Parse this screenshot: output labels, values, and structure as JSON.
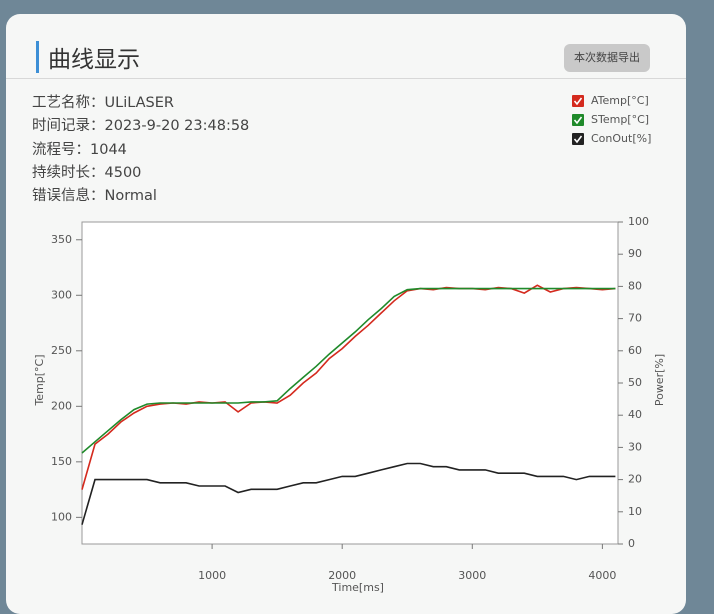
{
  "header": {
    "title": "曲线显示",
    "export_button": "本次数据导出"
  },
  "info": [
    {
      "label": "工艺名称：",
      "value": "ULiLASER"
    },
    {
      "label": "时间记录：",
      "value": "2023-9-20 23:48:58"
    },
    {
      "label": "流程号：",
      "value": "1044"
    },
    {
      "label": "持续时长：",
      "value": "4500"
    },
    {
      "label": "错误信息：",
      "value": "Normal"
    }
  ],
  "chart_data": {
    "type": "line",
    "x_label": "Time[ms]",
    "y_label": "Temp[°C]",
    "y2_label": "Power[%]",
    "x": [
      0,
      100,
      200,
      300,
      400,
      500,
      600,
      700,
      800,
      900,
      1000,
      1100,
      1200,
      1300,
      1400,
      1500,
      1600,
      1700,
      1800,
      1900,
      2000,
      2100,
      2200,
      2300,
      2400,
      2500,
      2600,
      2700,
      2800,
      2900,
      3000,
      3100,
      3200,
      3300,
      3400,
      3500,
      3600,
      3700,
      3800,
      3900,
      4000,
      4100
    ],
    "xlim": [
      0,
      4120
    ],
    "xticks": [
      1000,
      2000,
      3000,
      4000
    ],
    "ylim": [
      76,
      366
    ],
    "yticks": [
      100,
      150,
      200,
      250,
      300,
      350
    ],
    "y2lim": [
      0,
      100
    ],
    "y2ticks": [
      0,
      10,
      20,
      30,
      40,
      50,
      60,
      70,
      80,
      90,
      100
    ],
    "legend": "top-right",
    "grid": false,
    "series": [
      {
        "name": "ATemp[°C]",
        "color": "#d42a1e",
        "values": [
          125,
          166,
          175,
          186,
          194,
          200,
          202,
          203,
          202,
          204,
          203,
          204,
          195,
          203,
          204,
          203,
          210,
          221,
          230,
          243,
          252,
          263,
          273,
          284,
          295,
          304,
          306,
          305,
          307,
          306,
          306,
          305,
          307,
          306,
          302,
          309,
          303,
          306,
          307,
          306,
          305,
          306
        ]
      },
      {
        "name": "STemp[°C]",
        "color": "#1f8a2a",
        "values": [
          158,
          168,
          178,
          188,
          197,
          202,
          203,
          203,
          203,
          203,
          203,
          203,
          203,
          204,
          204,
          205,
          216,
          226,
          236,
          247,
          257,
          267,
          278,
          288,
          299,
          305,
          306,
          306,
          306,
          306,
          306,
          306,
          306,
          306,
          306,
          306,
          306,
          306,
          306,
          306,
          306,
          306
        ]
      },
      {
        "name": "ConOut[%]",
        "color": "#222222",
        "axis": "y2",
        "values": [
          6,
          20,
          20,
          20,
          20,
          20,
          19,
          19,
          19,
          18,
          18,
          18,
          16,
          17,
          17,
          17,
          18,
          19,
          19,
          20,
          21,
          21,
          22,
          23,
          24,
          25,
          25,
          24,
          24,
          23,
          23,
          23,
          22,
          22,
          22,
          21,
          21,
          21,
          20,
          21,
          21,
          21
        ]
      }
    ]
  }
}
